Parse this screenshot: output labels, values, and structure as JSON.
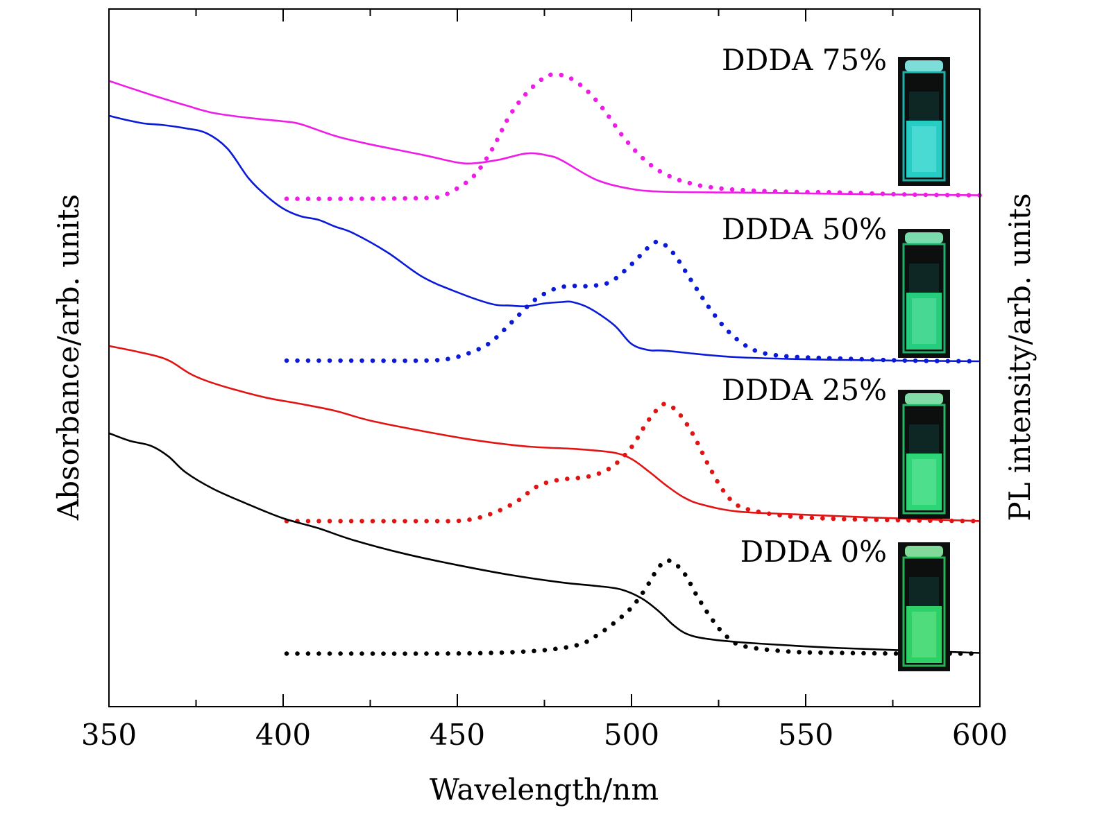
{
  "chart_data": {
    "type": "line",
    "xlabel": "Wavelength/nm",
    "ylabel_left": "Absorbance/arb. units",
    "ylabel_right": "PL intensity/arb. units",
    "xlim": [
      350,
      600
    ],
    "x_ticks": [
      350,
      400,
      450,
      500,
      550,
      600
    ],
    "x_minor_ticks": [
      375,
      425,
      475,
      525,
      575
    ],
    "y_tick_labels": "none",
    "ylim": [
      0,
      1000
    ],
    "grid": false,
    "series": [
      {
        "name": "DDDA 75%",
        "color": "#ee1ce6",
        "absorbance": [
          [
            350,
            897
          ],
          [
            356,
            887
          ],
          [
            364,
            874
          ],
          [
            372,
            862
          ],
          [
            380,
            851
          ],
          [
            390,
            844
          ],
          [
            400,
            839
          ],
          [
            405,
            835
          ],
          [
            415,
            818
          ],
          [
            425,
            806
          ],
          [
            440,
            791
          ],
          [
            450,
            780
          ],
          [
            455,
            779
          ],
          [
            462,
            784
          ],
          [
            470,
            793
          ],
          [
            476,
            790
          ],
          [
            480,
            783
          ],
          [
            490,
            755
          ],
          [
            500,
            742
          ],
          [
            510,
            738
          ],
          [
            530,
            737
          ],
          [
            560,
            735
          ],
          [
            600,
            733
          ]
        ],
        "pl": [
          [
            401,
            728
          ],
          [
            420,
            728
          ],
          [
            440,
            729
          ],
          [
            445,
            731
          ],
          [
            450,
            743
          ],
          [
            455,
            762
          ],
          [
            460,
            799
          ],
          [
            465,
            847
          ],
          [
            470,
            880
          ],
          [
            475,
            902
          ],
          [
            478,
            906
          ],
          [
            482,
            902
          ],
          [
            487,
            884
          ],
          [
            492,
            856
          ],
          [
            497,
            821
          ],
          [
            502,
            792
          ],
          [
            507,
            771
          ],
          [
            512,
            758
          ],
          [
            517,
            750
          ],
          [
            522,
            745
          ],
          [
            530,
            741
          ],
          [
            545,
            738
          ],
          [
            560,
            737
          ],
          [
            580,
            734
          ],
          [
            600,
            733
          ]
        ]
      },
      {
        "name": "DDDA 50%",
        "color": "#0a1ad6",
        "absorbance": [
          [
            350,
            847
          ],
          [
            355,
            841
          ],
          [
            360,
            836
          ],
          [
            365,
            834
          ],
          [
            372,
            829
          ],
          [
            378,
            822
          ],
          [
            384,
            800
          ],
          [
            390,
            758
          ],
          [
            395,
            733
          ],
          [
            400,
            714
          ],
          [
            405,
            703
          ],
          [
            410,
            698
          ],
          [
            415,
            688
          ],
          [
            420,
            679
          ],
          [
            430,
            651
          ],
          [
            440,
            616
          ],
          [
            450,
            594
          ],
          [
            460,
            577
          ],
          [
            465,
            575
          ],
          [
            470,
            574
          ],
          [
            475,
            578
          ],
          [
            480,
            580
          ],
          [
            483,
            580
          ],
          [
            488,
            571
          ],
          [
            495,
            547
          ],
          [
            500,
            520
          ],
          [
            505,
            511
          ],
          [
            510,
            510
          ],
          [
            530,
            501
          ],
          [
            560,
            497
          ],
          [
            600,
            495
          ]
        ],
        "pl": [
          [
            401,
            496
          ],
          [
            420,
            496
          ],
          [
            440,
            496
          ],
          [
            448,
            499
          ],
          [
            455,
            510
          ],
          [
            460,
            524
          ],
          [
            466,
            553
          ],
          [
            472,
            582
          ],
          [
            478,
            599
          ],
          [
            483,
            603
          ],
          [
            488,
            603
          ],
          [
            494,
            609
          ],
          [
            500,
            634
          ],
          [
            505,
            659
          ],
          [
            508,
            666
          ],
          [
            512,
            650
          ],
          [
            517,
            612
          ],
          [
            522,
            574
          ],
          [
            527,
            542
          ],
          [
            532,
            520
          ],
          [
            537,
            508
          ],
          [
            545,
            502
          ],
          [
            560,
            499
          ],
          [
            580,
            496
          ],
          [
            600,
            495
          ]
        ]
      },
      {
        "name": "DDDA 25%",
        "color": "#e11414",
        "absorbance": [
          [
            350,
            517
          ],
          [
            357,
            510
          ],
          [
            364,
            502
          ],
          [
            368,
            494
          ],
          [
            373,
            478
          ],
          [
            378,
            467
          ],
          [
            385,
            456
          ],
          [
            395,
            443
          ],
          [
            405,
            434
          ],
          [
            415,
            424
          ],
          [
            425,
            410
          ],
          [
            440,
            395
          ],
          [
            455,
            382
          ],
          [
            470,
            373
          ],
          [
            485,
            369
          ],
          [
            495,
            364
          ],
          [
            500,
            355
          ],
          [
            505,
            337
          ],
          [
            510,
            317
          ],
          [
            515,
            300
          ],
          [
            520,
            290
          ],
          [
            530,
            280
          ],
          [
            545,
            276
          ],
          [
            570,
            271
          ],
          [
            600,
            266
          ]
        ],
        "pl": [
          [
            401,
            266
          ],
          [
            420,
            266
          ],
          [
            440,
            266
          ],
          [
            452,
            267
          ],
          [
            460,
            277
          ],
          [
            467,
            294
          ],
          [
            473,
            316
          ],
          [
            479,
            325
          ],
          [
            485,
            328
          ],
          [
            490,
            333
          ],
          [
            495,
            346
          ],
          [
            500,
            372
          ],
          [
            504,
            404
          ],
          [
            507,
            424
          ],
          [
            510,
            434
          ],
          [
            514,
            418
          ],
          [
            518,
            387
          ],
          [
            522,
            347
          ],
          [
            526,
            312
          ],
          [
            530,
            290
          ],
          [
            535,
            281
          ],
          [
            545,
            273
          ],
          [
            560,
            269
          ],
          [
            580,
            267
          ],
          [
            600,
            266
          ]
        ]
      },
      {
        "name": "DDDA 0%",
        "color": "#000000",
        "absorbance": [
          [
            350,
            392
          ],
          [
            356,
            381
          ],
          [
            362,
            374
          ],
          [
            367,
            359
          ],
          [
            372,
            336
          ],
          [
            380,
            312
          ],
          [
            390,
            290
          ],
          [
            400,
            270
          ],
          [
            410,
            256
          ],
          [
            420,
            239
          ],
          [
            435,
            219
          ],
          [
            450,
            203
          ],
          [
            465,
            189
          ],
          [
            480,
            178
          ],
          [
            490,
            173
          ],
          [
            497,
            168
          ],
          [
            503,
            155
          ],
          [
            508,
            136
          ],
          [
            512,
            117
          ],
          [
            516,
            104
          ],
          [
            522,
            97
          ],
          [
            535,
            91
          ],
          [
            560,
            84
          ],
          [
            600,
            77
          ]
        ],
        "pl": [
          [
            401,
            76
          ],
          [
            420,
            76
          ],
          [
            440,
            76
          ],
          [
            460,
            77
          ],
          [
            475,
            81
          ],
          [
            485,
            89
          ],
          [
            490,
            102
          ],
          [
            495,
            120
          ],
          [
            500,
            142
          ],
          [
            504,
            169
          ],
          [
            508,
            201
          ],
          [
            511,
            209
          ],
          [
            515,
            192
          ],
          [
            519,
            157
          ],
          [
            523,
            126
          ],
          [
            527,
            102
          ],
          [
            532,
            87
          ],
          [
            545,
            79
          ],
          [
            560,
            77
          ],
          [
            580,
            76
          ],
          [
            600,
            76
          ]
        ]
      }
    ]
  }
}
